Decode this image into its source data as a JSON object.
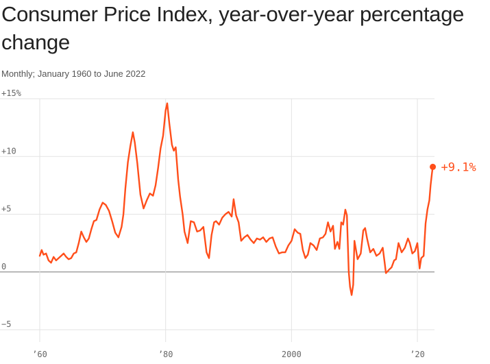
{
  "chart_data": {
    "type": "line",
    "title": "Consumer Price Index, year-over-year percentage change",
    "subtitle": "Monthly; January 1960 to June 2022",
    "xlabel": "",
    "ylabel": "",
    "xlim": [
      1960,
      2022.5
    ],
    "ylim": [
      -5,
      15
    ],
    "grid": true,
    "line_color": "#ff4e1a",
    "y_ticks": [
      {
        "value": 15,
        "label": "+15%"
      },
      {
        "value": 10,
        "label": "+10"
      },
      {
        "value": 5,
        "label": "+5"
      },
      {
        "value": 0,
        "label": "0"
      },
      {
        "value": -5,
        "label": "−5"
      }
    ],
    "x_ticks": [
      {
        "value": 1960,
        "label": "’60"
      },
      {
        "value": 1980,
        "label": "’80"
      },
      {
        "value": 2000,
        "label": "2000"
      },
      {
        "value": 2020,
        "label": "’20"
      }
    ],
    "end_label": "+9.1%",
    "series": [
      {
        "x": [
          1960.0,
          1960.3,
          1960.6,
          1961.0,
          1961.4,
          1961.8,
          1962.2,
          1962.6,
          1963.0,
          1963.4,
          1963.8,
          1964.2,
          1964.6,
          1965.0,
          1965.4,
          1965.8,
          1966.2,
          1966.6,
          1967.0,
          1967.4,
          1967.8,
          1968.2,
          1968.6,
          1969.0,
          1969.5,
          1970.0,
          1970.5,
          1971.0,
          1971.5,
          1972.0,
          1972.5,
          1973.0,
          1973.3,
          1973.6,
          1974.0,
          1974.4,
          1974.8,
          1975.1,
          1975.5,
          1976.0,
          1976.5,
          1977.0,
          1977.5,
          1978.0,
          1978.4,
          1978.8,
          1979.2,
          1979.6,
          1980.0,
          1980.25,
          1980.6,
          1981.0,
          1981.3,
          1981.6,
          1982.0,
          1982.3,
          1982.7,
          1983.0,
          1983.5,
          1984.0,
          1984.5,
          1985.0,
          1985.5,
          1986.0,
          1986.5,
          1986.9,
          1987.3,
          1987.7,
          1988.0,
          1988.5,
          1989.0,
          1989.5,
          1990.0,
          1990.5,
          1990.8,
          1991.2,
          1991.6,
          1992.0,
          1992.5,
          1993.0,
          1993.5,
          1994.0,
          1994.5,
          1995.0,
          1995.5,
          1996.0,
          1996.5,
          1997.0,
          1997.5,
          1998.0,
          1998.5,
          1999.0,
          1999.5,
          2000.0,
          2000.5,
          2001.0,
          2001.4,
          2001.8,
          2002.2,
          2002.6,
          2003.0,
          2003.5,
          2004.0,
          2004.5,
          2005.0,
          2005.4,
          2005.8,
          2006.2,
          2006.6,
          2006.9,
          2007.3,
          2007.6,
          2007.9,
          2008.2,
          2008.55,
          2008.8,
          2009.1,
          2009.3,
          2009.55,
          2009.8,
          2010.0,
          2010.5,
          2011.0,
          2011.4,
          2011.7,
          2012.0,
          2012.5,
          2013.0,
          2013.5,
          2014.0,
          2014.5,
          2014.8,
          2015.0,
          2015.5,
          2015.9,
          2016.3,
          2016.6,
          2017.0,
          2017.5,
          2018.0,
          2018.5,
          2018.8,
          2019.2,
          2019.6,
          2020.0,
          2020.35,
          2020.6,
          2021.0,
          2021.3,
          2021.6,
          2021.9,
          2022.1,
          2022.3,
          2022.45
        ],
        "y": [
          1.4,
          1.9,
          1.5,
          1.6,
          1.0,
          0.8,
          1.3,
          1.0,
          1.2,
          1.4,
          1.6,
          1.3,
          1.1,
          1.2,
          1.6,
          1.7,
          2.5,
          3.5,
          3.0,
          2.6,
          2.9,
          3.7,
          4.4,
          4.5,
          5.4,
          6.0,
          5.8,
          5.3,
          4.4,
          3.4,
          3.0,
          3.9,
          5.0,
          7.2,
          9.5,
          10.9,
          12.1,
          11.2,
          9.4,
          6.7,
          5.5,
          6.2,
          6.8,
          6.6,
          7.5,
          9.0,
          10.7,
          11.8,
          14.0,
          14.6,
          12.8,
          11.0,
          10.5,
          10.8,
          8.0,
          6.5,
          5.0,
          3.5,
          2.5,
          4.4,
          4.3,
          3.5,
          3.6,
          3.9,
          1.7,
          1.2,
          3.2,
          4.3,
          4.4,
          4.1,
          4.7,
          5.0,
          5.2,
          4.8,
          6.3,
          4.9,
          4.3,
          2.7,
          3.0,
          3.2,
          2.8,
          2.5,
          2.9,
          2.8,
          3.0,
          2.6,
          2.9,
          3.0,
          2.2,
          1.6,
          1.7,
          1.7,
          2.3,
          2.7,
          3.7,
          3.4,
          3.3,
          1.9,
          1.2,
          1.5,
          2.5,
          2.3,
          1.9,
          2.9,
          3.0,
          3.3,
          4.3,
          3.5,
          4.0,
          2.0,
          2.6,
          2.0,
          4.3,
          4.1,
          5.4,
          4.9,
          0.0,
          -1.3,
          -2.0,
          -1.1,
          2.7,
          1.1,
          1.6,
          3.6,
          3.8,
          2.9,
          1.7,
          2.0,
          1.4,
          1.6,
          2.1,
          0.8,
          -0.1,
          0.2,
          0.4,
          1.0,
          1.1,
          2.5,
          1.7,
          2.1,
          2.9,
          2.5,
          1.6,
          1.8,
          2.5,
          0.3,
          1.2,
          1.4,
          4.2,
          5.4,
          6.2,
          7.5,
          8.5,
          9.1
        ]
      }
    ]
  }
}
